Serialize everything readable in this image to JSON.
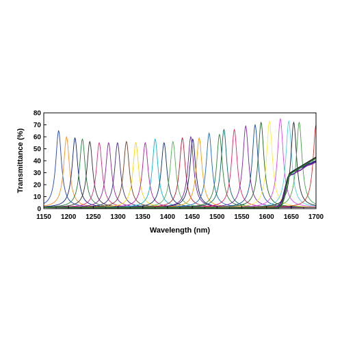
{
  "chart_data": {
    "type": "line",
    "title": "",
    "xlabel": "Wavelength (nm)",
    "ylabel": "Transmittance (%)",
    "xlim": [
      1150,
      1700
    ],
    "ylim": [
      0,
      80
    ],
    "xticks": [
      1150,
      1200,
      1250,
      1300,
      1350,
      1400,
      1450,
      1500,
      1550,
      1600,
      1650,
      1700
    ],
    "yticks": [
      0,
      10,
      20,
      30,
      40,
      50,
      60,
      70,
      80
    ],
    "grid": false,
    "legend": "none",
    "peak_halfwidth_nm": 7,
    "baseline_pct": 1,
    "series": [
      {
        "values": [
          [
            1180,
            65
          ]
        ],
        "color": "#1f3fbf"
      },
      {
        "values": [
          [
            1196,
            60
          ]
        ],
        "color": "#ff8c1a"
      },
      {
        "values": [
          [
            1213,
            59
          ]
        ],
        "color": "#0a1a80"
      },
      {
        "values": [
          [
            1228,
            58
          ]
        ],
        "color": "#1f7a3a"
      },
      {
        "values": [
          [
            1243,
            56
          ]
        ],
        "color": "#2a2a2a"
      },
      {
        "values": [
          [
            1262,
            55
          ]
        ],
        "color": "#d6287d"
      },
      {
        "values": [
          [
            1281,
            55
          ]
        ],
        "color": "#8a1f9f"
      },
      {
        "values": [
          [
            1299,
            55
          ]
        ],
        "color": "#3a2a7a"
      },
      {
        "values": [
          [
            1317,
            56
          ]
        ],
        "color": "#6b3a1a"
      },
      {
        "values": [
          [
            1336,
            55
          ]
        ],
        "color": "#ffd400"
      },
      {
        "values": [
          [
            1355,
            55
          ]
        ],
        "color": "#b5179e"
      },
      {
        "values": [
          [
            1375,
            58
          ]
        ],
        "color": "#00b4d8"
      },
      {
        "values": [
          [
            1393,
            55
          ]
        ],
        "color": "#0a2a6a"
      },
      {
        "values": [
          [
            1411,
            56
          ]
        ],
        "color": "#4caf50"
      },
      {
        "values": [
          [
            1430,
            59
          ]
        ],
        "color": "#c0152f"
      },
      {
        "values": [
          [
            1447,
            60
          ]
        ],
        "color": "#6a1b9a"
      },
      {
        "values": [
          [
            1451,
            58
          ]
        ],
        "color": "#101060"
      },
      {
        "values": [
          [
            1464,
            59
          ]
        ],
        "color": "#ff9800"
      },
      {
        "values": [
          [
            1484,
            63
          ]
        ],
        "color": "#1565c0"
      },
      {
        "values": [
          [
            1505,
            62
          ]
        ],
        "color": "#2e7d32"
      },
      {
        "values": [
          [
            1514,
            66
          ]
        ],
        "color": "#00695c"
      },
      {
        "values": [
          [
            1535,
            66
          ]
        ],
        "color": "#e91e63"
      },
      {
        "values": [
          [
            1558,
            69
          ]
        ],
        "color": "#7b1fa2"
      },
      {
        "values": [
          [
            1577,
            70
          ]
        ],
        "color": "#0d47a1"
      },
      {
        "values": [
          [
            1589,
            72
          ]
        ],
        "color": "#1b5e20"
      },
      {
        "values": [
          [
            1606,
            73
          ]
        ],
        "color": "#ffeb3b"
      },
      {
        "values": [
          [
            1628,
            75
          ]
        ],
        "color": "#e040fb"
      },
      {
        "values": [
          [
            1645,
            73
          ]
        ],
        "color": "#4dd0e1"
      },
      {
        "values": [
          [
            1655,
            72
          ]
        ],
        "color": "#212121"
      },
      {
        "values": [
          [
            1666,
            72
          ]
        ],
        "color": "#43a047"
      },
      {
        "values": [
          [
            1700,
            70
          ]
        ],
        "color": "#d32f2f"
      }
    ],
    "edge_curves": [
      {
        "color": "#1a237e",
        "values": [
          [
            1615,
            0.5
          ],
          [
            1620,
            1
          ],
          [
            1626,
            3
          ],
          [
            1632,
            8
          ],
          [
            1638,
            18
          ],
          [
            1643,
            26
          ],
          [
            1648,
            30
          ],
          [
            1655,
            31
          ],
          [
            1662,
            32
          ],
          [
            1668,
            34
          ],
          [
            1675,
            35
          ],
          [
            1682,
            37
          ],
          [
            1690,
            38
          ],
          [
            1700,
            40
          ]
        ]
      },
      {
        "color": "#6a1b9a",
        "values": [
          [
            1615,
            0.5
          ],
          [
            1620,
            1
          ],
          [
            1626,
            3
          ],
          [
            1632,
            7
          ],
          [
            1638,
            17
          ],
          [
            1643,
            25
          ],
          [
            1648,
            28
          ],
          [
            1655,
            29
          ],
          [
            1662,
            31
          ],
          [
            1668,
            32
          ],
          [
            1675,
            34
          ],
          [
            1682,
            36
          ],
          [
            1690,
            37
          ],
          [
            1700,
            39
          ]
        ]
      },
      {
        "color": "#212121",
        "values": [
          [
            1618,
            0.5
          ],
          [
            1624,
            1
          ],
          [
            1630,
            3
          ],
          [
            1636,
            10
          ],
          [
            1641,
            22
          ],
          [
            1646,
            29
          ],
          [
            1652,
            31
          ],
          [
            1660,
            33
          ],
          [
            1668,
            35
          ],
          [
            1676,
            37
          ],
          [
            1684,
            39
          ],
          [
            1692,
            41
          ],
          [
            1700,
            43
          ]
        ]
      },
      {
        "color": "#2e7d32",
        "values": [
          [
            1618,
            0.5
          ],
          [
            1624,
            1
          ],
          [
            1630,
            2
          ],
          [
            1636,
            9
          ],
          [
            1641,
            20
          ],
          [
            1646,
            28
          ],
          [
            1652,
            30
          ],
          [
            1660,
            32
          ],
          [
            1668,
            34
          ],
          [
            1676,
            36
          ],
          [
            1684,
            38
          ],
          [
            1692,
            40
          ],
          [
            1700,
            42
          ]
        ]
      }
    ]
  }
}
